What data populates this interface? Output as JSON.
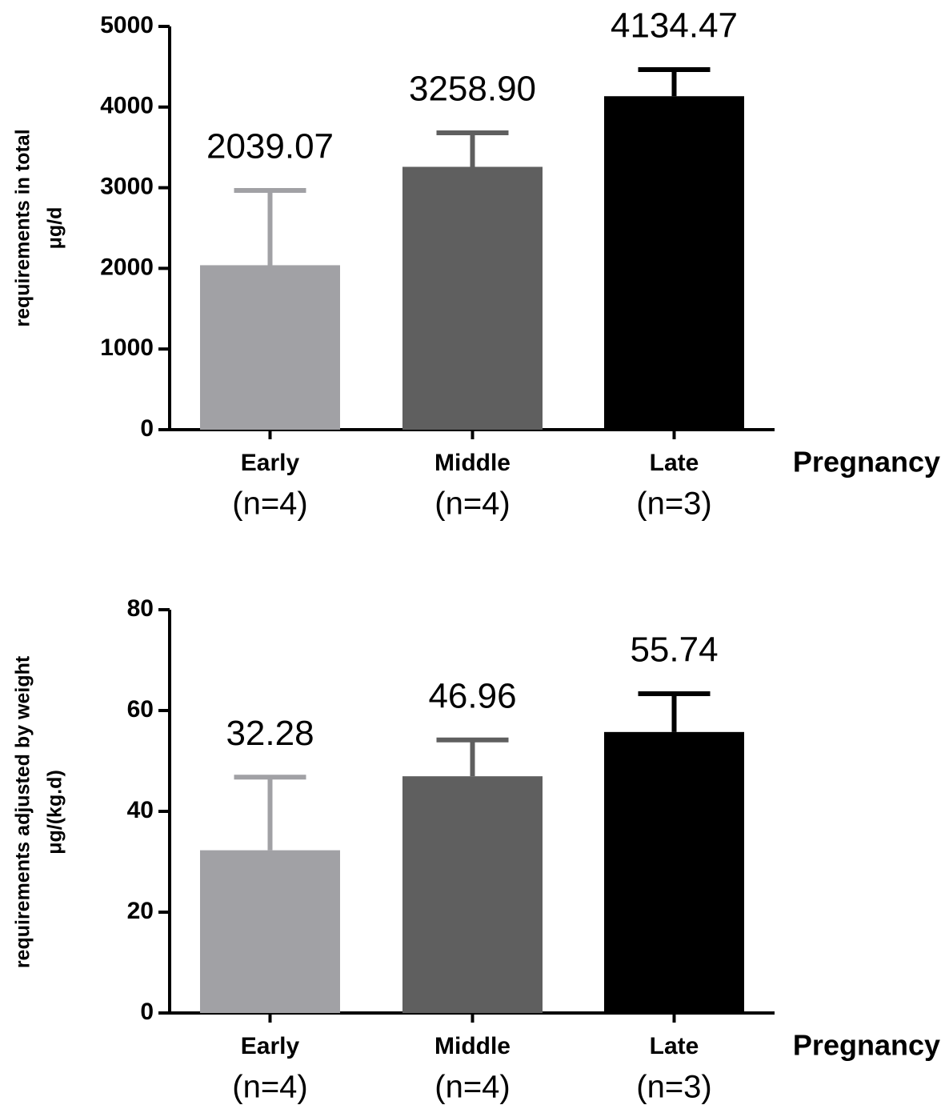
{
  "chart_data": [
    {
      "type": "bar",
      "ylabel": [
        "requirements in total",
        "μg/d"
      ],
      "xlabel": "Pregnancy",
      "categories": [
        [
          "Early",
          "(n=4)"
        ],
        [
          "Middle",
          "(n=4)"
        ],
        [
          "Late",
          "(n=3)"
        ]
      ],
      "values": [
        2039.07,
        3258.9,
        4134.47
      ],
      "value_labels": [
        "2039.07",
        "3258.90",
        "4134.47"
      ],
      "errors": [
        927,
        422,
        330
      ],
      "colors": [
        "#a1a1a5",
        "#5f5f5f",
        "#000000"
      ],
      "ylim": [
        0,
        5000
      ],
      "yticks": [
        0,
        1000,
        2000,
        3000,
        4000,
        5000
      ]
    },
    {
      "type": "bar",
      "ylabel": [
        "requirements adjusted by weight",
        "μg/(kg.d)"
      ],
      "xlabel": "Pregnancy",
      "categories": [
        [
          "Early",
          "(n=4)"
        ],
        [
          "Middle",
          "(n=4)"
        ],
        [
          "Late",
          "(n=3)"
        ]
      ],
      "values": [
        32.28,
        46.96,
        55.74
      ],
      "value_labels": [
        "32.28",
        "46.96",
        "55.74"
      ],
      "errors": [
        14.5,
        7.2,
        7.6
      ],
      "colors": [
        "#a1a1a5",
        "#5f5f5f",
        "#000000"
      ],
      "ylim": [
        0,
        80
      ],
      "yticks": [
        0,
        20,
        40,
        60,
        80
      ]
    }
  ]
}
